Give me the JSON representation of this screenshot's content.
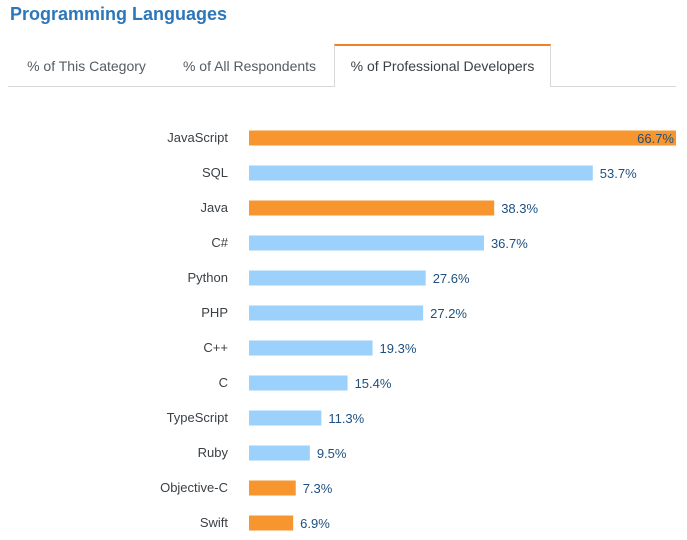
{
  "page": {
    "title": "Programming Languages"
  },
  "tabs": [
    {
      "label": "% of This Category",
      "active": false
    },
    {
      "label": "% of All Respondents",
      "active": false
    },
    {
      "label": "% of Professional Developers",
      "active": true
    }
  ],
  "colors": {
    "highlight": "#f7962e",
    "default": "#9bd1fa",
    "title": "#2d77b8",
    "value_text": "#1e4f7e"
  },
  "chart_data": {
    "type": "bar",
    "orientation": "horizontal",
    "title": "",
    "xlabel": "",
    "ylabel": "",
    "xlim": [
      0,
      66.7
    ],
    "grid": false,
    "categories": [
      "JavaScript",
      "SQL",
      "Java",
      "C#",
      "Python",
      "PHP",
      "C++",
      "C",
      "TypeScript",
      "Ruby",
      "Objective-C",
      "Swift"
    ],
    "values": [
      66.7,
      53.7,
      38.3,
      36.7,
      27.6,
      27.2,
      19.3,
      15.4,
      11.3,
      9.5,
      7.3,
      6.9
    ],
    "value_labels": [
      "66.7%",
      "53.7%",
      "38.3%",
      "36.7%",
      "27.6%",
      "27.2%",
      "19.3%",
      "15.4%",
      "11.3%",
      "9.5%",
      "7.3%",
      "6.9%"
    ],
    "highlighted": [
      true,
      false,
      true,
      false,
      false,
      false,
      false,
      false,
      false,
      false,
      true,
      true
    ]
  }
}
